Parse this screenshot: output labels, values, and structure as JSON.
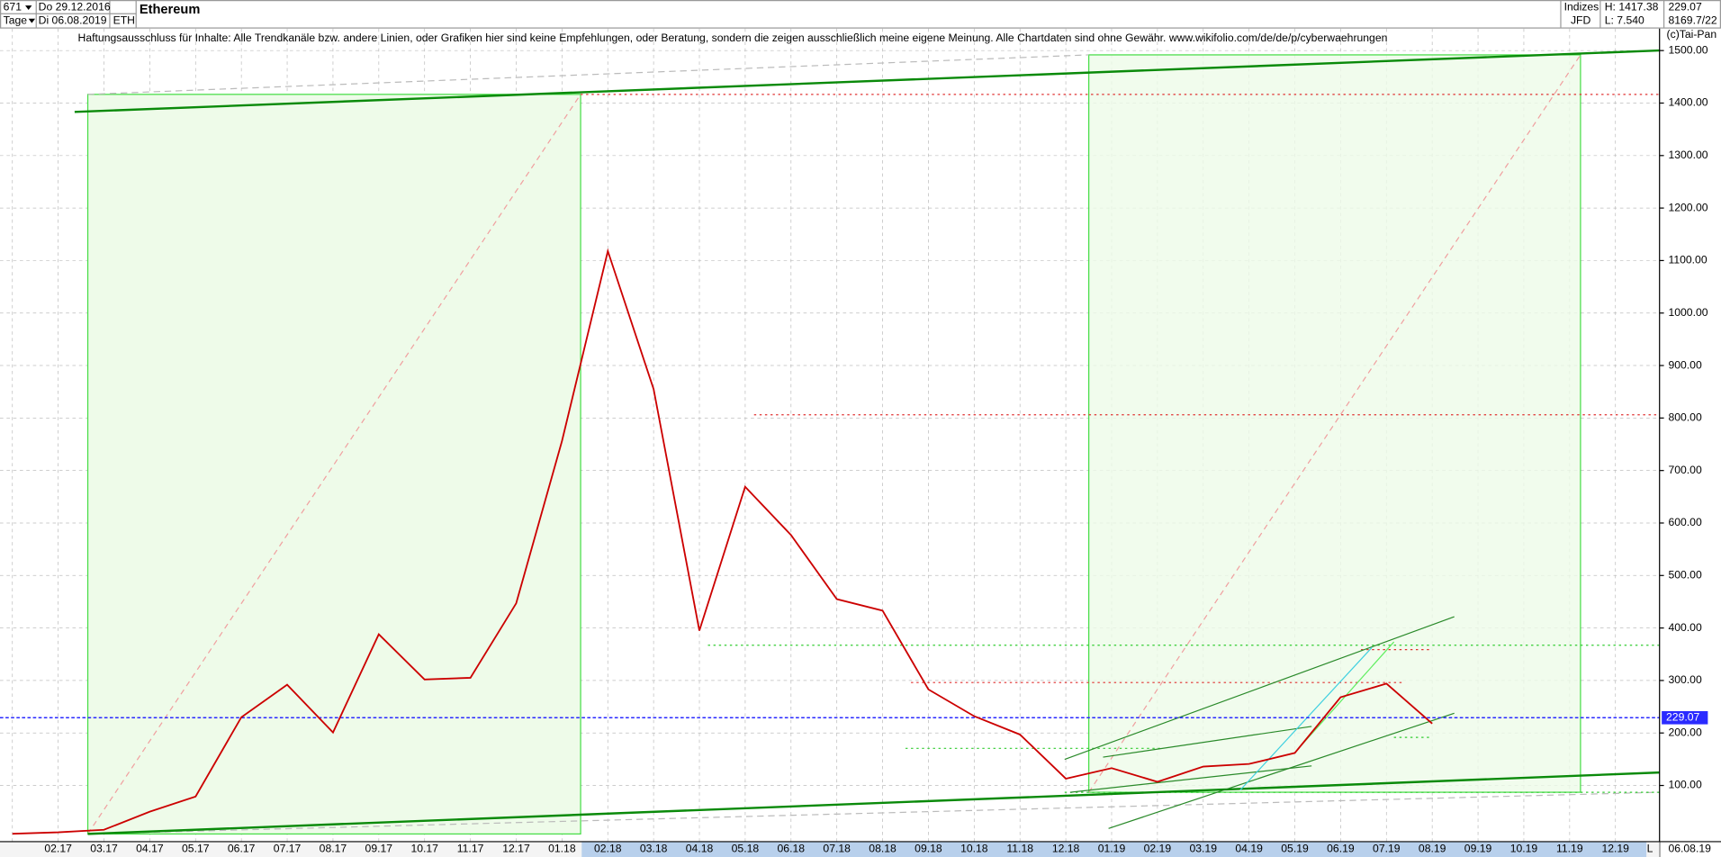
{
  "header": {
    "count": 671,
    "period": "Tage",
    "from": "Do 29.12.2016",
    "to": "Di 06.08.2019",
    "symbol": "ETH",
    "group": "Indizes",
    "broker": "JFD",
    "high": "H: 1417.38",
    "low": "L: 7.540",
    "field": "8169.7/22",
    "copyright": "(c)Tai-Pan",
    "end_date": "06.08.19",
    "end_flag": "L",
    "disclaimer": "Haftungsausschluss für Inhalte: Alle Trendkanäle bzw. andere Linien, oder Grafiken hier sind keine Empfehlungen, oder Beratung, sondern die zeigen ausschließlich meine eigene Meinung. Alle Chartdaten sind ohne Gewähr.  www.wikifolio.com/de/de/p/cyberwaehrungen"
  },
  "chart_data": {
    "type": "line",
    "title": "Ethereum",
    "color": "#cc0000",
    "grid": true,
    "last": 229.07,
    "last_color": "#2a2aff",
    "categories": [
      null,
      "02.17",
      "03.17",
      "04.17",
      "05.17",
      "06.17",
      "07.17",
      "08.17",
      "09.17",
      "10.17",
      "11.17",
      "12.17",
      "01.18",
      "02.18",
      "03.18",
      "04.18",
      "05.18",
      "06.18",
      "07.18",
      "08.18",
      "09.18",
      "10.18",
      "11.18",
      "12.18",
      "01.19",
      "02.19",
      "03.19",
      "04.19",
      "05.19",
      "06.19",
      "07.19",
      "08.19",
      "09.19",
      "10.19",
      "11.19",
      "12.19"
    ],
    "values": [
      8,
      10.7,
      15.6,
      50,
      79,
      230,
      292,
      201,
      388,
      302,
      305,
      447,
      756,
      1118,
      855,
      395,
      669,
      577,
      455,
      433,
      283,
      232,
      197,
      113,
      133,
      107,
      136,
      141,
      162,
      268,
      294,
      218,
      null,
      null,
      null,
      null
    ],
    "ylim": [
      -7,
      1542
    ],
    "yticks": [
      {
        "value": 100,
        "label": "100.00"
      },
      {
        "value": 200,
        "label": "200.00"
      },
      {
        "value": 300,
        "label": "300.00"
      },
      {
        "value": 400,
        "label": "400.00"
      },
      {
        "value": 500,
        "label": "500.00"
      },
      {
        "value": 600,
        "label": "600.00"
      },
      {
        "value": 700,
        "label": "700.00"
      },
      {
        "value": 800,
        "label": "800.00"
      },
      {
        "value": 900,
        "label": "900.00"
      },
      {
        "value": 1000,
        "label": "1000.00"
      },
      {
        "value": 1100,
        "label": "1100.00"
      },
      {
        "value": 1200,
        "label": "1200.00"
      },
      {
        "value": 1300,
        "label": "1300.00"
      },
      {
        "value": 1400,
        "label": "1400.00"
      },
      {
        "value": 1500,
        "label": "1500.00"
      }
    ]
  }
}
